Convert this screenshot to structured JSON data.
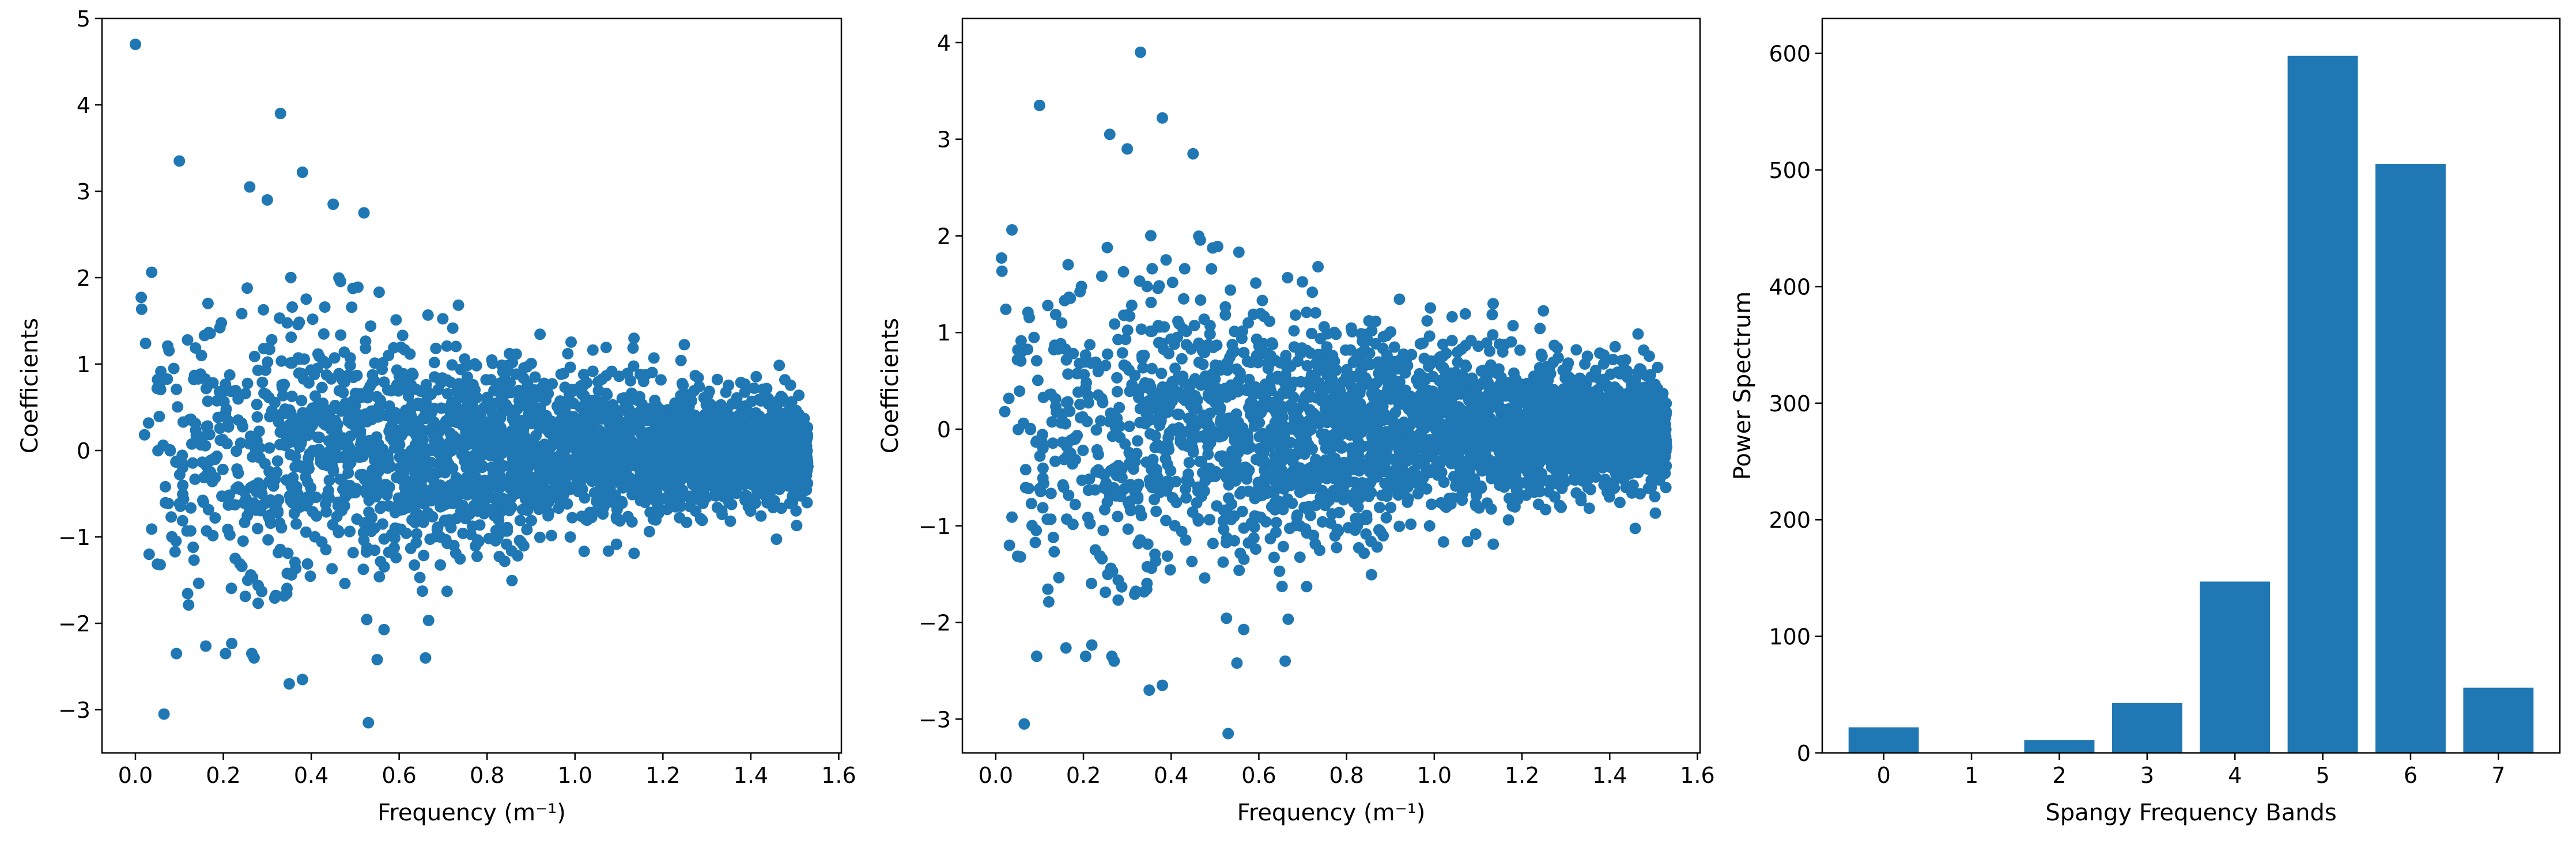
{
  "colors": {
    "marker": "#1f77b4",
    "axis": "#000000",
    "background": "#ffffff"
  },
  "chart_data": [
    {
      "type": "scatter",
      "xlabel": "Frequency (m⁻¹)",
      "ylabel": "Coefficients",
      "xlim": [
        -0.076,
        1.606
      ],
      "ylim": [
        -3.5,
        5.0
      ],
      "xticks": [
        0.0,
        0.2,
        0.4,
        0.6,
        0.8,
        1.0,
        1.2,
        1.4,
        1.6
      ],
      "xtick_labels": [
        "0.0",
        "0.2",
        "0.4",
        "0.6",
        "0.8",
        "1.0",
        "1.2",
        "1.4",
        "1.6"
      ],
      "yticks": [
        -3,
        -2,
        -1,
        0,
        1,
        2,
        3,
        4,
        5
      ],
      "ytick_labels": [
        "−3",
        "−2",
        "−1",
        "0",
        "1",
        "2",
        "3",
        "4",
        "5"
      ],
      "x_range": [
        0.0,
        1.53
      ],
      "notable_points": [
        [
          0.0,
          4.7
        ],
        [
          0.33,
          3.9
        ],
        [
          0.1,
          3.35
        ],
        [
          0.38,
          3.22
        ],
        [
          0.53,
          -3.15
        ],
        [
          0.065,
          -3.05
        ],
        [
          0.35,
          -2.7
        ],
        [
          0.38,
          -2.65
        ],
        [
          0.27,
          -2.4
        ],
        [
          0.55,
          -2.42
        ],
        [
          0.66,
          -2.4
        ],
        [
          0.26,
          3.05
        ],
        [
          0.3,
          2.9
        ],
        [
          0.45,
          2.85
        ],
        [
          0.52,
          2.75
        ]
      ],
      "point_count": 3000
    },
    {
      "type": "scatter",
      "xlabel": "Frequency (m⁻¹)",
      "ylabel": "Coefficients",
      "xlim": [
        -0.076,
        1.606
      ],
      "ylim": [
        -3.35,
        4.25
      ],
      "xticks": [
        0.0,
        0.2,
        0.4,
        0.6,
        0.8,
        1.0,
        1.2,
        1.4,
        1.6
      ],
      "xtick_labels": [
        "0.0",
        "0.2",
        "0.4",
        "0.6",
        "0.8",
        "1.0",
        "1.2",
        "1.4",
        "1.6"
      ],
      "yticks": [
        -3,
        -2,
        -1,
        0,
        1,
        2,
        3,
        4
      ],
      "ytick_labels": [
        "−3",
        "−2",
        "−1",
        "0",
        "1",
        "2",
        "3",
        "4"
      ],
      "x_range": [
        0.0,
        1.53
      ],
      "notable_points": [
        [
          0.33,
          3.9
        ],
        [
          0.1,
          3.35
        ],
        [
          0.38,
          3.22
        ],
        [
          0.26,
          3.05
        ],
        [
          0.3,
          2.9
        ],
        [
          0.45,
          2.85
        ],
        [
          0.53,
          -3.15
        ],
        [
          0.065,
          -3.05
        ],
        [
          0.35,
          -2.7
        ],
        [
          0.38,
          -2.65
        ],
        [
          0.27,
          -2.4
        ],
        [
          0.55,
          -2.42
        ],
        [
          0.66,
          -2.4
        ]
      ],
      "point_count": 3000
    },
    {
      "type": "bar",
      "xlabel": "Spangy Frequency Bands",
      "ylabel": "Power Spectrum",
      "categories": [
        "0",
        "1",
        "2",
        "3",
        "4",
        "5",
        "6",
        "7"
      ],
      "values": [
        22,
        0,
        11,
        43,
        147,
        598,
        505,
        56
      ],
      "ylim": [
        0,
        630
      ],
      "yticks": [
        0,
        100,
        200,
        300,
        400,
        500,
        600
      ],
      "ytick_labels": [
        "0",
        "100",
        "200",
        "300",
        "400",
        "500",
        "600"
      ]
    }
  ]
}
